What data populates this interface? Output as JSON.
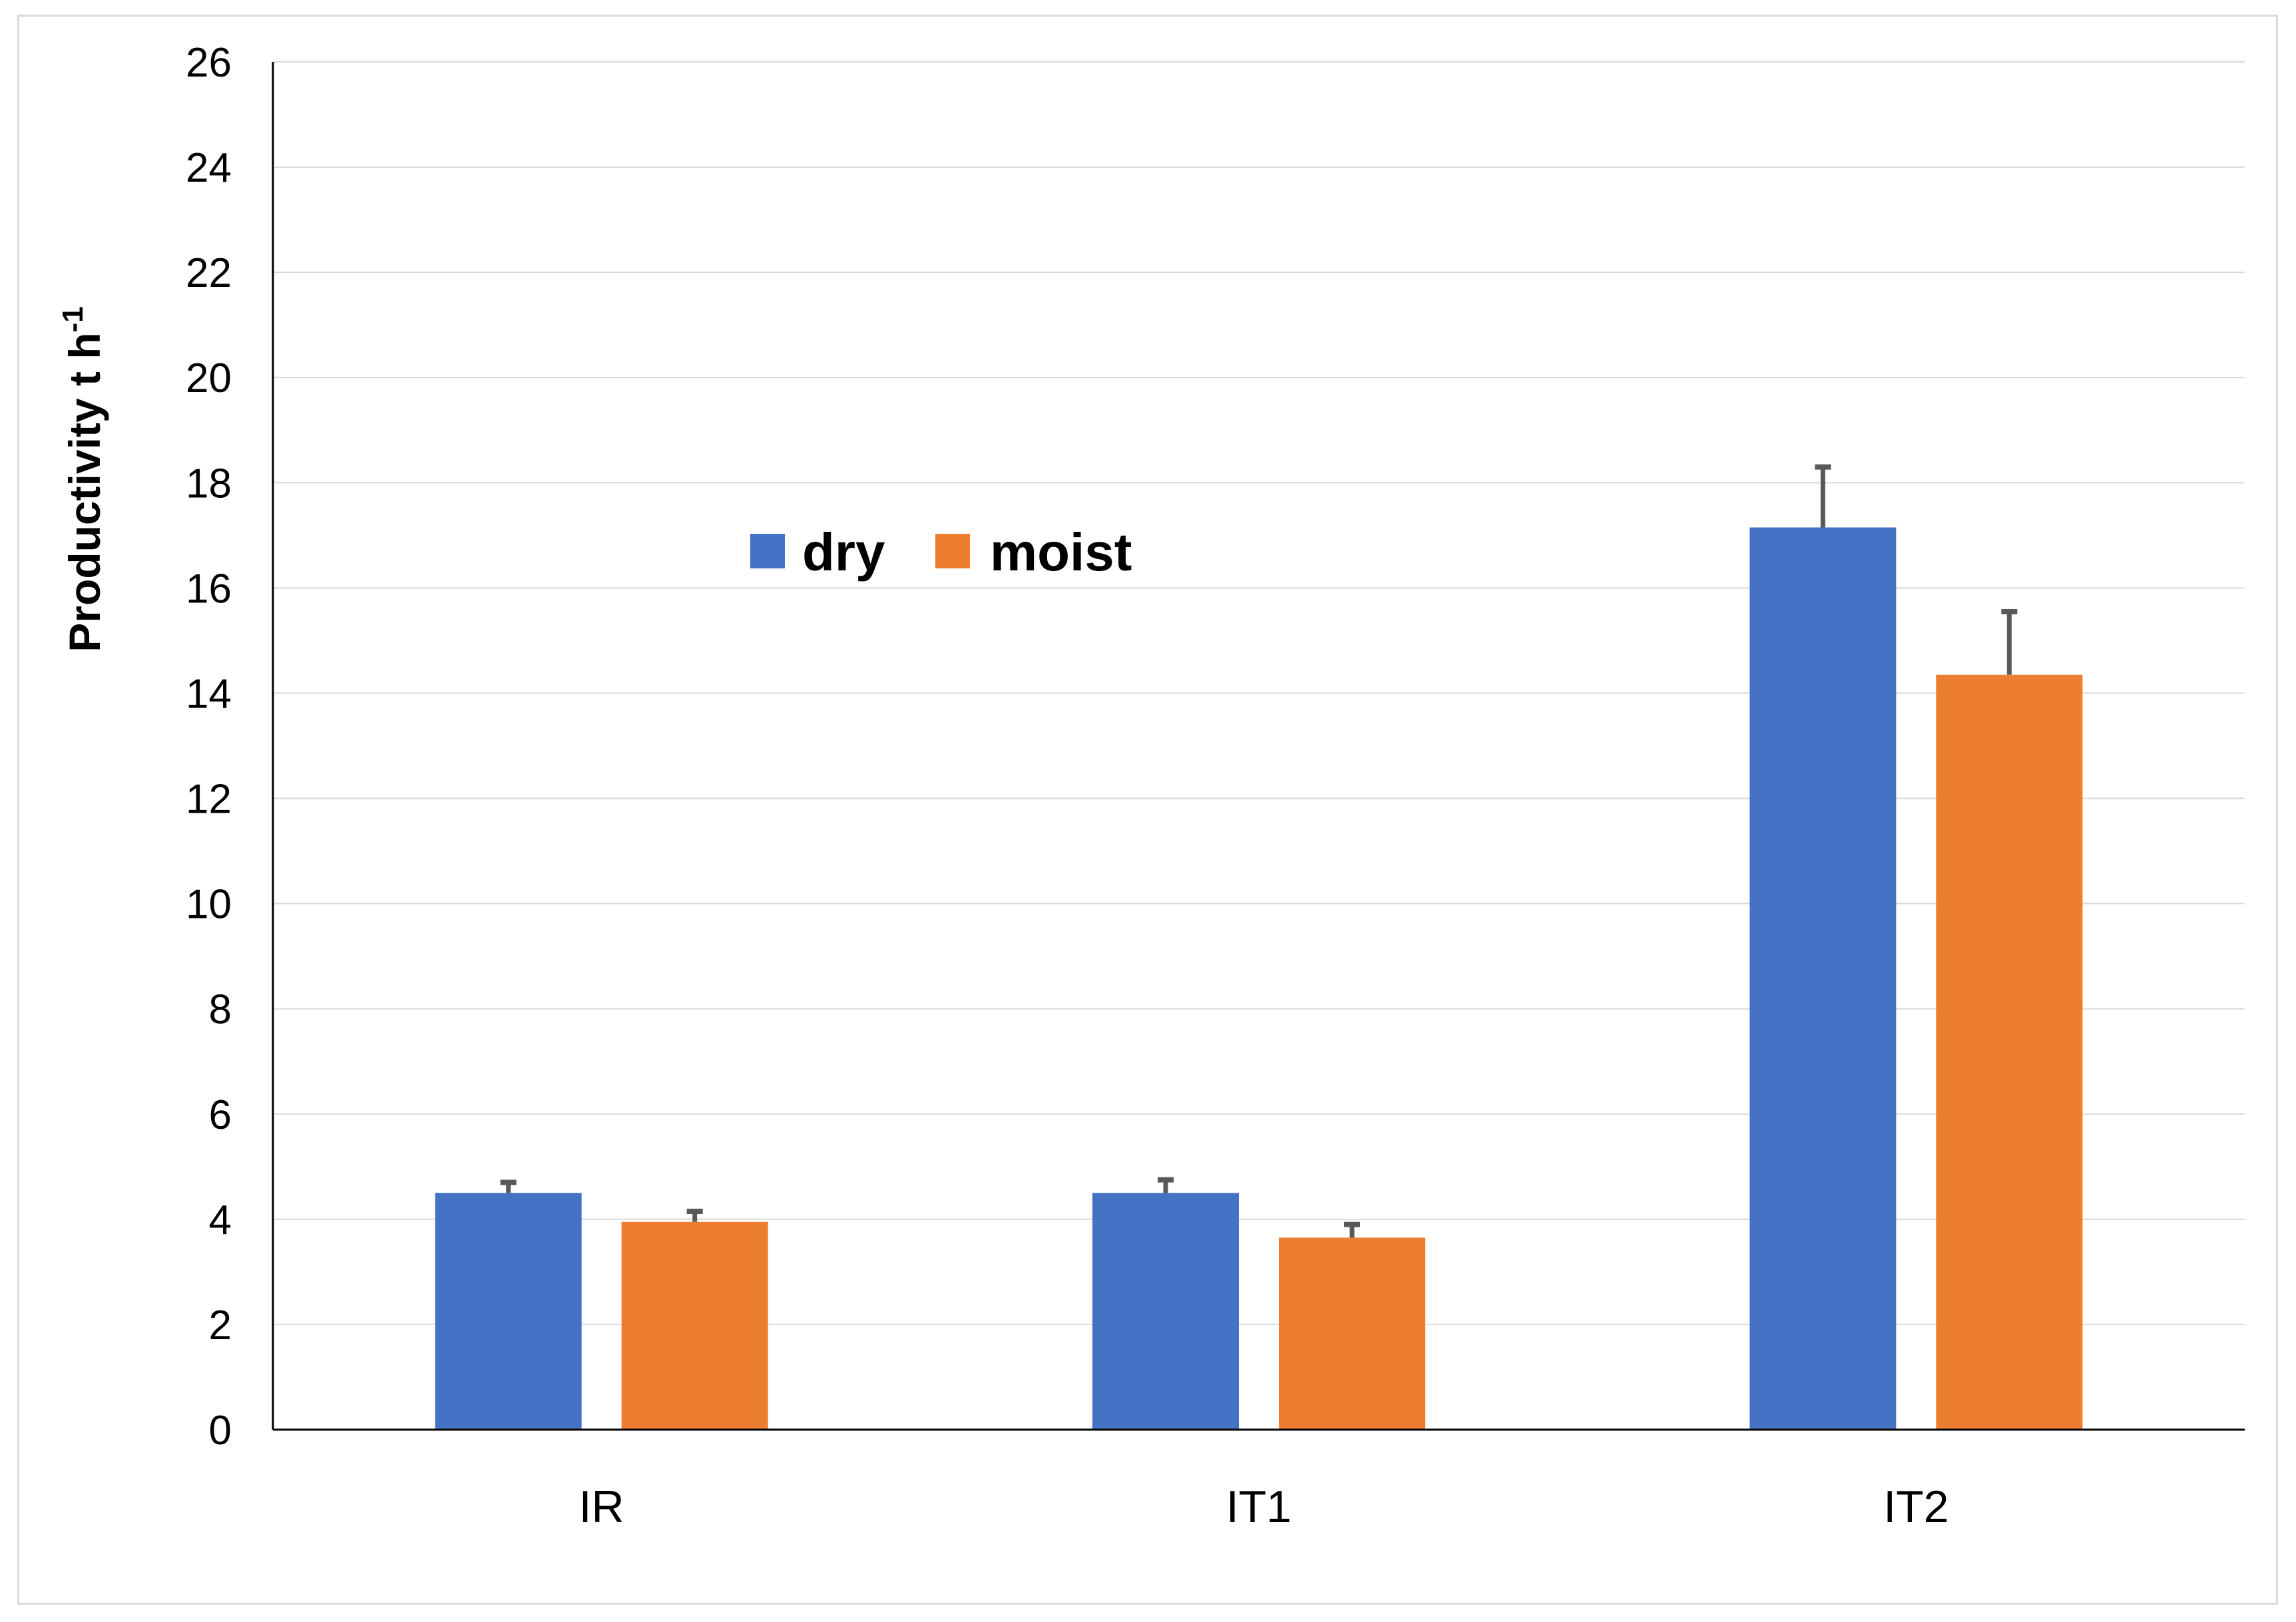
{
  "chart_data": {
    "type": "bar",
    "categories": [
      "IR",
      "IT1",
      "IT2"
    ],
    "series": [
      {
        "name": "dry",
        "color": "#4472C4",
        "values": [
          4.5,
          4.5,
          17.15
        ],
        "error": [
          0.2,
          0.25,
          1.15
        ]
      },
      {
        "name": "moist",
        "color": "#ED7D31",
        "values": [
          3.95,
          3.65,
          14.35
        ],
        "error": [
          0.2,
          0.25,
          1.2
        ]
      }
    ],
    "ylabel_main": "Productivity t h",
    "ylabel_sup": "-1",
    "ylim": [
      0,
      26
    ],
    "yticks": [
      "0",
      "2",
      "4",
      "6",
      "8",
      "10",
      "12",
      "14",
      "16",
      "18",
      "20",
      "22",
      "24",
      "26"
    ],
    "grid": true,
    "legend_position": "upper-left-inside"
  }
}
